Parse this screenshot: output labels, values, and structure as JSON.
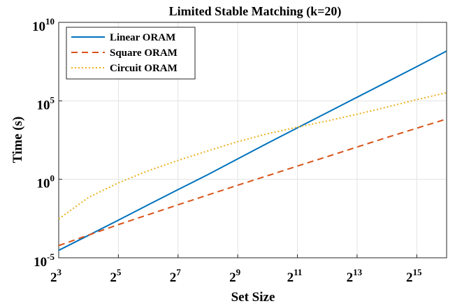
{
  "chart_data": {
    "type": "line",
    "title": "Limited Stable Matching (k=20)",
    "xlabel": "Set Size",
    "ylabel": "Time (s)",
    "x_scale": "log2",
    "y_scale": "log10",
    "xlim": [
      8,
      65536
    ],
    "ylim": [
      1e-05,
      10000000000.0
    ],
    "x_ticks": [
      {
        "base": "2",
        "exp": "3",
        "value": 8
      },
      {
        "base": "2",
        "exp": "5",
        "value": 32
      },
      {
        "base": "2",
        "exp": "7",
        "value": 128
      },
      {
        "base": "2",
        "exp": "9",
        "value": 512
      },
      {
        "base": "2",
        "exp": "11",
        "value": 2048
      },
      {
        "base": "2",
        "exp": "13",
        "value": 8192
      },
      {
        "base": "2",
        "exp": "15",
        "value": 32768
      }
    ],
    "y_ticks": [
      {
        "base": "10",
        "exp": "-5",
        "value": 1e-05
      },
      {
        "base": "10",
        "exp": "0",
        "value": 1
      },
      {
        "base": "10",
        "exp": "5",
        "value": 100000
      },
      {
        "base": "10",
        "exp": "10",
        "value": 10000000000
      }
    ],
    "grid": true,
    "legend_position": "top-left",
    "series": [
      {
        "name": "Linear ORAM",
        "color": "#0072BD",
        "style": "solid",
        "x": [
          8,
          16,
          32,
          64,
          128,
          256,
          512,
          1024,
          2048,
          4096,
          8192,
          16384,
          32768,
          65536
        ],
        "y": [
          3e-05,
          0.00027,
          0.0025,
          0.024,
          0.22,
          2.0,
          20,
          200,
          1900,
          18000,
          170000,
          1600000,
          15000000,
          150000000
        ]
      },
      {
        "name": "Square ORAM",
        "color": "#D95319",
        "style": "dashed",
        "x": [
          8,
          16,
          32,
          64,
          128,
          256,
          512,
          1024,
          2048,
          4096,
          8192,
          16384,
          32768,
          65536
        ],
        "y": [
          6e-05,
          0.00028,
          0.0013,
          0.0056,
          0.024,
          0.1,
          0.42,
          1.7,
          7,
          28,
          115,
          460,
          1800,
          7000
        ]
      },
      {
        "name": "Circuit ORAM",
        "color": "#EDB120",
        "style": "dotted",
        "x": [
          8,
          16,
          32,
          64,
          128,
          256,
          512,
          1024,
          2048,
          4096,
          8192,
          16384,
          32768,
          65536
        ],
        "y": [
          0.003,
          0.07,
          0.6,
          3.5,
          16,
          65,
          250,
          800,
          2100,
          5200,
          14000,
          40000,
          120000,
          330000
        ]
      }
    ]
  }
}
